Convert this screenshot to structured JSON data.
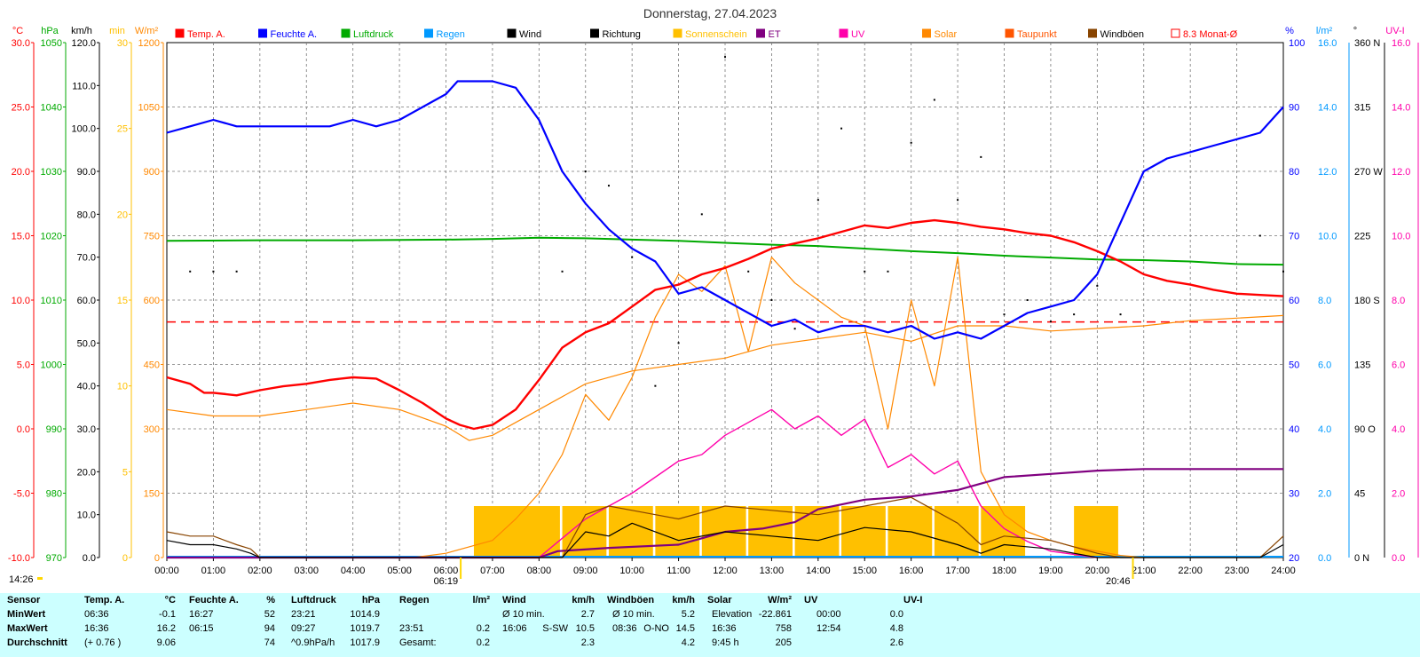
{
  "title": "Donnerstag, 27.04.2023",
  "colors": {
    "temp": "#ff0000",
    "humidity": "#0000ff",
    "pressure": "#00aa00",
    "rain": "#0099ff",
    "wind": "#000000",
    "sunshine": "#ffc000",
    "et": "#800080",
    "uv": "#ff00aa",
    "solar": "#ff8800",
    "dewpoint": "#ff5500",
    "gusts": "#884400",
    "avg": "#ff0000",
    "stats_bg": "#ccffff"
  },
  "axis_units": {
    "temp": "°C",
    "pressure": "hPa",
    "wind": "km/h",
    "minutes": "min",
    "solar": "W/m²",
    "humidity": "%",
    "rain": "l/m²",
    "direction": "°",
    "uv": "UV-I"
  },
  "legend": [
    "Temp. A.",
    "Feuchte A.",
    "Luftdruck",
    "Regen",
    "Wind",
    "Richtung",
    "Sonnenschein",
    "ET",
    "UV",
    "Solar",
    "Taupunkt",
    "Windböen",
    "8.3 Monat-Ø"
  ],
  "left_axes": {
    "temp": [
      "30.0",
      "25.0",
      "20.0",
      "15.0",
      "10.0",
      "5.0",
      "0.0",
      "-5.0",
      "-10.0"
    ],
    "pressure": [
      "1050",
      "1040",
      "1030",
      "1020",
      "1010",
      "1000",
      "990",
      "980",
      "970"
    ],
    "wind": [
      "120.0",
      "110.0",
      "100.0",
      "90.0",
      "80.0",
      "70.0",
      "60.0",
      "50.0",
      "40.0",
      "30.0",
      "20.0",
      "10.0",
      "0.0"
    ],
    "minutes": [
      "30",
      "25",
      "20",
      "15",
      "10",
      "5",
      "0"
    ],
    "solar": [
      "1200",
      "1050",
      "900",
      "750",
      "600",
      "450",
      "300",
      "150",
      "0"
    ]
  },
  "right_axes": {
    "humidity": [
      "100",
      "90",
      "80",
      "70",
      "60",
      "50",
      "40",
      "30",
      "20"
    ],
    "rain": [
      "16.0",
      "14.0",
      "12.0",
      "10.0",
      "8.0",
      "6.0",
      "4.0",
      "2.0",
      "0.0"
    ],
    "direction": [
      "360 N",
      "315",
      "270 W",
      "225",
      "180 S",
      "135",
      "90 O",
      "45",
      "0 N"
    ],
    "uv": [
      "16.0",
      "14.0",
      "12.0",
      "10.0",
      "8.0",
      "6.0",
      "4.0",
      "2.0",
      "0.0"
    ]
  },
  "x_ticks": [
    "00:00",
    "01:00",
    "02:00",
    "03:00",
    "04:00",
    "05:00",
    "06:00",
    "07:00",
    "08:00",
    "09:00",
    "10:00",
    "11:00",
    "12:00",
    "13:00",
    "14:00",
    "15:00",
    "16:00",
    "17:00",
    "18:00",
    "19:00",
    "20:00",
    "21:00",
    "22:00",
    "23:00",
    "24:00"
  ],
  "markers": {
    "now": "14:26",
    "sunrise": "06:19",
    "sunset": "20:46"
  },
  "chart_data": {
    "type": "line",
    "title": "Donnerstag, 27.04.2023",
    "x_range": [
      0,
      24
    ],
    "grid": true,
    "legend_position": "top",
    "monthly_avg_temp": 8.3,
    "series": [
      {
        "name": "Temp. A.",
        "axis": "temp",
        "ylim": [
          -10,
          30
        ],
        "x": [
          0,
          0.5,
          0.8,
          1,
          1.5,
          2,
          2.5,
          3,
          3.5,
          4,
          4.5,
          5,
          5.5,
          6,
          6.3,
          6.6,
          7,
          7.5,
          8,
          8.5,
          9,
          9.5,
          10,
          10.5,
          11,
          11.5,
          12,
          12.5,
          13,
          13.5,
          14,
          14.5,
          15,
          15.5,
          16,
          16.5,
          17,
          17.5,
          18,
          18.5,
          19,
          19.5,
          20,
          20.5,
          21,
          21.5,
          22,
          22.5,
          23,
          23.5,
          24
        ],
        "values": [
          4.0,
          3.5,
          2.8,
          2.8,
          2.6,
          3.0,
          3.3,
          3.5,
          3.8,
          4.0,
          3.9,
          3.0,
          2.0,
          0.8,
          0.3,
          0.0,
          0.3,
          1.5,
          3.8,
          6.3,
          7.5,
          8.2,
          9.5,
          10.8,
          11.2,
          12.0,
          12.5,
          13.2,
          14.0,
          14.4,
          14.8,
          15.3,
          15.8,
          15.6,
          16.0,
          16.2,
          16.0,
          15.7,
          15.5,
          15.2,
          15.0,
          14.5,
          13.8,
          13.0,
          12.0,
          11.5,
          11.2,
          10.8,
          10.5,
          10.4,
          10.3
        ]
      },
      {
        "name": "Feuchte A.",
        "axis": "humidity",
        "ylim": [
          20,
          100
        ],
        "x": [
          0,
          0.5,
          1,
          1.5,
          2,
          2.5,
          3,
          3.5,
          4,
          4.5,
          5,
          5.5,
          6,
          6.25,
          7,
          7.5,
          8,
          8.5,
          9,
          9.5,
          10,
          10.5,
          11,
          11.5,
          12,
          12.5,
          13,
          13.5,
          14,
          14.5,
          15,
          15.5,
          16,
          16.5,
          17,
          17.5,
          18,
          18.5,
          19,
          19.5,
          20,
          20.5,
          21,
          21.5,
          22,
          22.5,
          23,
          23.5,
          24
        ],
        "values": [
          86,
          87,
          88,
          87,
          87,
          87,
          87,
          87,
          88,
          87,
          88,
          90,
          92,
          94,
          94,
          93,
          88,
          80,
          75,
          71,
          68,
          66,
          61,
          62,
          60,
          58,
          56,
          57,
          55,
          56,
          56,
          55,
          56,
          54,
          55,
          54,
          56,
          58,
          59,
          60,
          64,
          72,
          80,
          82,
          83,
          84,
          85,
          86,
          90
        ]
      },
      {
        "name": "Luftdruck",
        "axis": "pressure",
        "ylim": [
          970,
          1050
        ],
        "x": [
          0,
          2,
          4,
          6,
          7,
          8,
          9,
          10,
          11,
          12,
          13,
          14,
          15,
          16,
          17,
          18,
          19,
          20,
          21,
          22,
          23,
          24
        ],
        "values": [
          1019.2,
          1019.3,
          1019.3,
          1019.4,
          1019.5,
          1019.7,
          1019.6,
          1019.4,
          1019.2,
          1018.9,
          1018.6,
          1018.4,
          1018.0,
          1017.6,
          1017.3,
          1016.9,
          1016.6,
          1016.3,
          1016.2,
          1016.0,
          1015.6,
          1015.5
        ]
      },
      {
        "name": "Taupunkt",
        "axis": "temp",
        "ylim": [
          -10,
          30
        ],
        "x": [
          0,
          1,
          2,
          3,
          4,
          5,
          6,
          6.5,
          7,
          8,
          9,
          10,
          11,
          12,
          13,
          14,
          15,
          16,
          17,
          18,
          19,
          20,
          21,
          22,
          23,
          24
        ],
        "values": [
          1.5,
          1.0,
          1.0,
          1.5,
          2.0,
          1.5,
          0.2,
          -0.9,
          -0.5,
          1.5,
          3.5,
          4.5,
          5.0,
          5.5,
          6.5,
          7.0,
          7.5,
          6.8,
          8.0,
          8.0,
          7.6,
          7.8,
          8.0,
          8.4,
          8.6,
          8.8
        ]
      },
      {
        "name": "Solar",
        "axis": "solar",
        "ylim": [
          0,
          1200
        ],
        "x": [
          5.3,
          6,
          7,
          7.5,
          8,
          8.5,
          9,
          9.5,
          10,
          10.5,
          11,
          11.5,
          12,
          12.5,
          13,
          13.5,
          14,
          14.5,
          15,
          15.5,
          16,
          16.5,
          17,
          17.5,
          18,
          18.5,
          19,
          19.5,
          20,
          20.5,
          21
        ],
        "values": [
          0,
          10,
          40,
          90,
          150,
          240,
          380,
          320,
          420,
          560,
          660,
          620,
          680,
          480,
          700,
          640,
          600,
          560,
          540,
          300,
          600,
          400,
          700,
          200,
          100,
          60,
          40,
          25,
          15,
          5,
          0
        ]
      },
      {
        "name": "UV",
        "axis": "uv",
        "ylim": [
          0,
          16
        ],
        "x": [
          7,
          8,
          9,
          10,
          11,
          11.5,
          12,
          12.5,
          13,
          13.5,
          14,
          14.5,
          15,
          15.5,
          16,
          16.5,
          17,
          17.5,
          18,
          18.5,
          19,
          19.5,
          20
        ],
        "values": [
          0,
          0,
          1.2,
          2.0,
          3.0,
          3.2,
          3.8,
          4.2,
          4.6,
          4.0,
          4.4,
          3.8,
          4.3,
          2.8,
          3.2,
          2.6,
          3.0,
          1.6,
          0.9,
          0.5,
          0.2,
          0.1,
          0
        ]
      },
      {
        "name": "ET",
        "axis": "rain",
        "ylim": [
          0,
          16
        ],
        "x": [
          0,
          8,
          8.4,
          9.5,
          11,
          11.5,
          12,
          12.8,
          13.5,
          14,
          15,
          16,
          17,
          18,
          19,
          20,
          21,
          24
        ],
        "values": [
          0,
          0,
          0.2,
          0.3,
          0.4,
          0.6,
          0.8,
          0.9,
          1.1,
          1.5,
          1.8,
          1.9,
          2.1,
          2.5,
          2.6,
          2.7,
          2.75,
          2.75
        ]
      },
      {
        "name": "Wind",
        "axis": "wind",
        "ylim": [
          0,
          120
        ],
        "x": [
          0,
          0.5,
          1,
          1.5,
          1.8,
          2,
          8.5,
          9,
          9.5,
          10,
          11,
          12,
          13,
          14,
          15,
          16,
          17,
          17.5,
          18,
          19,
          20,
          20.5,
          23.5,
          24
        ],
        "values": [
          4,
          3,
          3,
          2,
          1,
          0,
          0,
          6,
          5,
          8,
          4,
          6,
          5,
          4,
          7,
          6,
          3,
          1,
          3,
          2,
          0,
          0,
          0,
          3
        ]
      },
      {
        "name": "Windböen",
        "axis": "wind",
        "ylim": [
          0,
          120
        ],
        "x": [
          0,
          0.5,
          1,
          1.5,
          1.8,
          2,
          8.5,
          9,
          9.5,
          10,
          11,
          12,
          13,
          14,
          15,
          16,
          17,
          17.5,
          18,
          19,
          20,
          20.5,
          23.5,
          24
        ],
        "values": [
          6,
          5,
          5,
          3,
          2,
          0,
          0,
          10,
          12,
          11,
          9,
          12,
          11,
          10,
          12,
          14,
          8,
          3,
          5,
          4,
          1,
          0,
          0,
          5
        ]
      },
      {
        "name": "Sonnenschein",
        "axis": "minutes",
        "ylim": [
          0,
          30
        ],
        "x": [
          6.6,
          7.5,
          8.5,
          9.5,
          10.5,
          11.5,
          12.5,
          13.5,
          14.5,
          15.5,
          16.5,
          17.5,
          18.5,
          19.5
        ],
        "values": [
          3,
          3,
          3,
          3,
          3,
          3,
          3,
          3,
          3,
          3,
          3,
          3,
          0,
          3
        ]
      }
    ],
    "direction_points": {
      "name": "Richtung",
      "axis": "direction",
      "x": [
        0.5,
        1,
        1.5,
        8.5,
        9,
        9.5,
        10,
        10.5,
        11,
        11.5,
        12,
        12.5,
        13,
        13.5,
        14,
        14.5,
        15,
        15.5,
        16,
        16.5,
        17,
        17.5,
        18,
        18.5,
        19,
        19.5,
        20,
        20.5,
        23.5,
        24
      ],
      "values": [
        200,
        200,
        200,
        200,
        270,
        260,
        210,
        120,
        150,
        240,
        350,
        200,
        180,
        160,
        250,
        300,
        200,
        200,
        290,
        320,
        250,
        280,
        170,
        180,
        165,
        170,
        190,
        170,
        225,
        200
      ]
    }
  },
  "stats": {
    "headers": [
      "Sensor",
      "Temp. A.",
      "°C",
      "Feuchte A.",
      "%",
      "Luftdruck",
      "hPa",
      "Regen",
      "l/m²",
      "Wind",
      "km/h",
      "Windböen",
      "km/h",
      "Solar",
      "W/m²",
      "UV",
      "UV-I"
    ],
    "row_labels": [
      "MinWert",
      "MaxWert",
      "Durchschnitt"
    ],
    "temp": [
      [
        "06:36",
        "-0.1"
      ],
      [
        "16:36",
        "16.2"
      ],
      [
        "(+ 0.76 )",
        "9.06"
      ]
    ],
    "humidity": [
      [
        "16:27",
        "52"
      ],
      [
        "06:15",
        "94"
      ],
      [
        "",
        "74"
      ]
    ],
    "pressure": [
      [
        "23:21",
        "1014.9"
      ],
      [
        "09:27",
        "1019.7"
      ],
      [
        "^0.9hPa/h",
        "1017.9"
      ]
    ],
    "rain": [
      [
        "",
        ""
      ],
      [
        "23:51",
        "0.2"
      ],
      [
        "Gesamt:",
        "0.2"
      ]
    ],
    "wind": [
      [
        "Ø 10 min.",
        "",
        "2.7"
      ],
      [
        "16:06",
        "S-SW",
        "10.5"
      ],
      [
        "",
        "",
        "2.3"
      ]
    ],
    "gusts": [
      [
        "Ø 10 min.",
        "",
        "5.2"
      ],
      [
        "08:36",
        "O-NO",
        "14.5"
      ],
      [
        "",
        "",
        "4.2"
      ]
    ],
    "solar": [
      [
        "Elevation",
        "-22.861"
      ],
      [
        "16:36",
        "758"
      ],
      [
        "9:45 h",
        "205"
      ]
    ],
    "uv": [
      [
        "00:00",
        "0.0"
      ],
      [
        "12:54",
        "4.8"
      ],
      [
        "",
        "2.6"
      ]
    ]
  }
}
